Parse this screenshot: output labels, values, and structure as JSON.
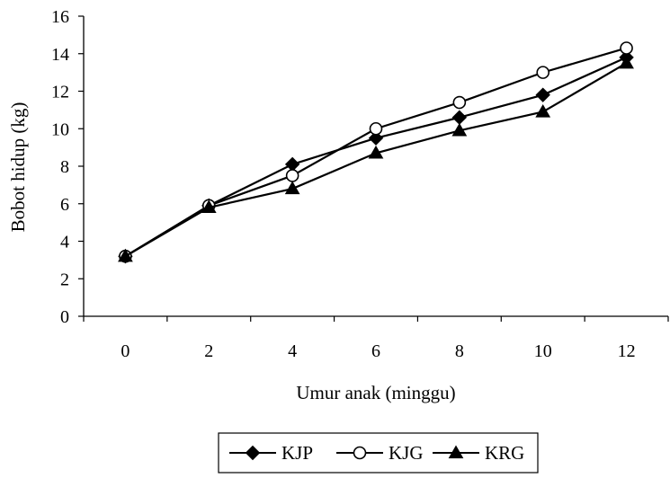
{
  "chart_data": {
    "type": "line",
    "xlabel": "Umur anak (minggu)",
    "ylabel": "Bobot hidup (kg)",
    "x": [
      0,
      2,
      4,
      6,
      8,
      10,
      12
    ],
    "x_ticks": [
      "0",
      "2",
      "4",
      "6",
      "8",
      "10",
      "12"
    ],
    "y_ticks": [
      "0",
      "2",
      "4",
      "6",
      "8",
      "10",
      "12",
      "14",
      "16"
    ],
    "ylim": [
      0,
      16
    ],
    "grid": false,
    "legend_position": "bottom",
    "series": [
      {
        "name": "KJP",
        "marker": "diamond",
        "values": [
          3.2,
          5.9,
          8.1,
          9.5,
          10.6,
          11.8,
          13.8
        ]
      },
      {
        "name": "KJG",
        "marker": "circle-open",
        "values": [
          3.2,
          5.9,
          7.5,
          10.0,
          11.4,
          13.0,
          14.3
        ]
      },
      {
        "name": "KRG",
        "marker": "triangle",
        "values": [
          3.2,
          5.8,
          6.8,
          8.7,
          9.9,
          10.9,
          13.5
        ]
      }
    ],
    "colors": {
      "line": "#000000",
      "marker_fill": "#000000",
      "open_marker_fill": "#ffffff"
    }
  }
}
